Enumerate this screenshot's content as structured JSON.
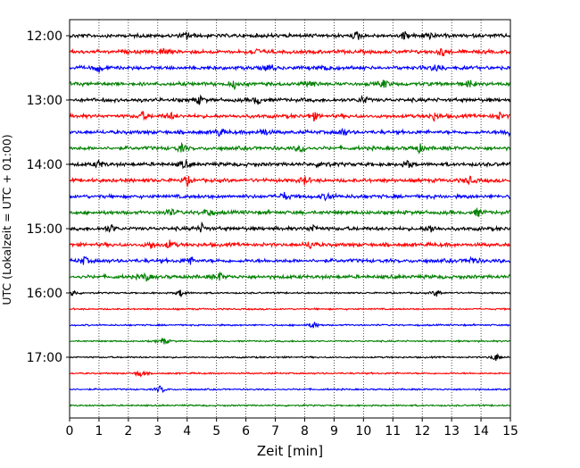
{
  "chart_data": {
    "type": "line",
    "subtype": "helicorder seismogram",
    "xlabel": "Zeit  [min]",
    "ylabel": "UTC (Lokalzeit = UTC + 01:00)",
    "xlim": [
      0,
      15
    ],
    "x_ticks": [
      "0",
      "1",
      "2",
      "3",
      "4",
      "5",
      "6",
      "7",
      "8",
      "9",
      "10",
      "11",
      "12",
      "13",
      "14",
      "15"
    ],
    "y_ticks": [
      "12:00",
      "13:00",
      "14:00",
      "15:00",
      "16:00",
      "17:00"
    ],
    "vertical_grid": "dotted at every minute",
    "trace_colors_cycle": [
      "#000000",
      "#ff0000",
      "#0000ff",
      "#008000"
    ],
    "traces": [
      {
        "start": "12:00",
        "color": "#000000",
        "events": [
          4.0,
          9.8,
          11.4,
          12.2
        ]
      },
      {
        "start": "12:15",
        "color": "#ff0000",
        "events": [
          3.2,
          6.3,
          12.7
        ]
      },
      {
        "start": "12:30",
        "color": "#0000ff",
        "events": [
          1.0,
          6.8,
          8.8,
          12.5
        ]
      },
      {
        "start": "12:45",
        "color": "#008000",
        "events": [
          5.6,
          8.2,
          10.7,
          13.6
        ]
      },
      {
        "start": "13:00",
        "color": "#000000",
        "events": [
          4.4,
          6.4,
          10.0
        ]
      },
      {
        "start": "13:15",
        "color": "#ff0000",
        "events": [
          2.5,
          3.4,
          8.3,
          12.4,
          14.6
        ]
      },
      {
        "start": "13:30",
        "color": "#0000ff",
        "events": [
          5.1,
          6.6,
          9.3,
          14.9
        ]
      },
      {
        "start": "13:45",
        "color": "#008000",
        "events": [
          3.8,
          7.9,
          11.9
        ]
      },
      {
        "start": "14:00",
        "color": "#000000",
        "events": [
          1.0,
          3.9,
          8.6,
          11.5
        ]
      },
      {
        "start": "14:15",
        "color": "#ff0000",
        "events": [
          4.0,
          8.0,
          13.6
        ]
      },
      {
        "start": "14:30",
        "color": "#0000ff",
        "events": [
          7.3,
          8.8
        ]
      },
      {
        "start": "14:45",
        "color": "#008000",
        "events": [
          3.4,
          4.7,
          13.9
        ]
      },
      {
        "start": "15:00",
        "color": "#000000",
        "events": [
          1.4,
          4.5,
          8.3,
          12.3
        ]
      },
      {
        "start": "15:15",
        "color": "#ff0000",
        "events": [
          2.8,
          3.4,
          8.2
        ]
      },
      {
        "start": "15:30",
        "color": "#0000ff",
        "events": [
          0.5,
          4.1,
          13.7
        ]
      },
      {
        "start": "15:45",
        "color": "#008000",
        "events": [
          2.6,
          5.1
        ]
      },
      {
        "start": "16:00",
        "color": "#000000",
        "events": [
          0.1,
          3.8,
          12.5
        ]
      },
      {
        "start": "16:15",
        "color": "#ff0000",
        "events": []
      },
      {
        "start": "16:30",
        "color": "#0000ff",
        "events": [
          8.3
        ]
      },
      {
        "start": "16:45",
        "color": "#008000",
        "events": [
          3.2
        ]
      },
      {
        "start": "17:00",
        "color": "#000000",
        "events": [
          14.5
        ]
      },
      {
        "start": "17:15",
        "color": "#ff0000",
        "events": [
          2.4
        ]
      },
      {
        "start": "17:30",
        "color": "#0000ff",
        "events": [
          3.1
        ]
      },
      {
        "start": "17:45",
        "color": "#008000",
        "events": []
      }
    ]
  }
}
